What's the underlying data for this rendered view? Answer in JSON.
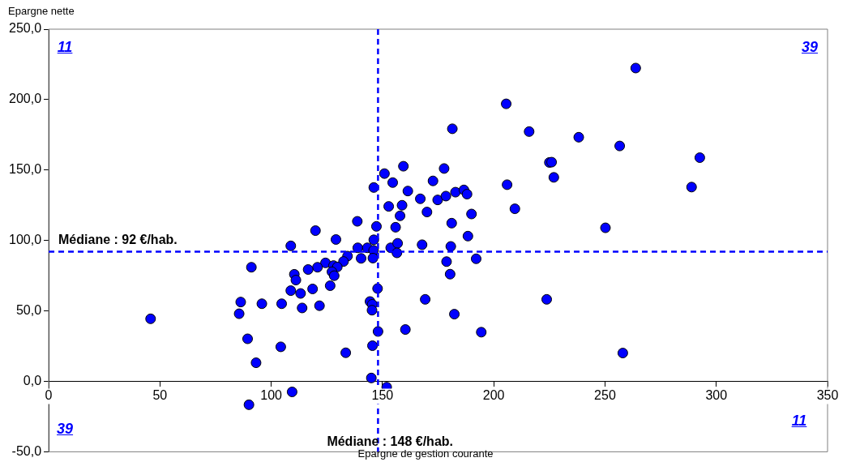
{
  "chart_data": {
    "type": "scatter",
    "xlabel": "Epargne de gestion courante",
    "ylabel": "Epargne nette",
    "series": [
      {
        "color": "#0000ff",
        "x": [
          45.8,
          150.9,
          146.1,
          152.8,
          138.7,
          147.3,
          119.9,
          129.1,
          146.1,
          108.8,
          138.9,
          143.2,
          146,
          153.7,
          134.3,
          140.4,
          145.7,
          132.5,
          124.4,
          128,
          129.7,
          120.8,
          116.6,
          91.1,
          127.3,
          128.3,
          110.4,
          111.1,
          126.5,
          108.8,
          113.2,
          118.6,
          147.8,
          86.3,
          95.8,
          104.7,
          85.6,
          113.9,
          121.7,
          144.4,
          145.4,
          145.3,
          148,
          89.4,
          104.3,
          145.5,
          133.5,
          93.2,
          145,
          151.9,
          109.4,
          90,
          205.6,
          181.4,
          215.9,
          238.2,
          159.4,
          177.7,
          225,
          226,
          227,
          154.6,
          172.7,
          161.4,
          167,
          174.8,
          178.5,
          182.8,
          186.6,
          188,
          206,
          209.5,
          158.8,
          170,
          157.9,
          190,
          155.9,
          181.1,
          188.4,
          167.8,
          180.7,
          156.8,
          156.5,
          192.1,
          178.8,
          180.4,
          169.2,
          223.8,
          182.3,
          160.3,
          194.4,
          263.8,
          256.6,
          292.6,
          288.9,
          250.2,
          258
        ],
        "values": [
          44.4,
          147.5,
          137.6,
          124.2,
          113.6,
          110,
          107,
          100.7,
          100.5,
          96.2,
          94.8,
          94.8,
          93,
          94.8,
          88.9,
          87.3,
          87.5,
          85.1,
          84.1,
          82.2,
          81.2,
          81,
          79.4,
          81,
          77.8,
          75,
          76,
          71.9,
          67.9,
          64.4,
          62.4,
          65.6,
          65.9,
          56.3,
          55.1,
          55.1,
          48,
          52.1,
          53.7,
          56.7,
          54.7,
          50.5,
          35.4,
          30.2,
          24.5,
          25.3,
          20.3,
          13.2,
          2.4,
          -4.1,
          -7.5,
          -16.6,
          197,
          179.3,
          177.3,
          173.3,
          152.7,
          151.1,
          155.4,
          155.6,
          144.8,
          141.1,
          142.3,
          135.1,
          129.6,
          128.8,
          131.5,
          134.3,
          135.9,
          132.9,
          139.6,
          122.5,
          125,
          120.2,
          117.5,
          118.8,
          109.4,
          112.3,
          103.1,
          97,
          95.8,
          98,
          91.2,
          87,
          85,
          76.1,
          58.2,
          58.2,
          47.7,
          36.8,
          34.9,
          222.4,
          167.1,
          158.8,
          137.9,
          109,
          20.1
        ]
      }
    ],
    "xlim": [
      0,
      350
    ],
    "xticks": [
      0,
      50,
      100,
      150,
      200,
      250,
      300,
      350
    ],
    "ylim": [
      -50,
      250
    ],
    "yticks": [
      {
        "value": -50,
        "label": "-50,0"
      },
      {
        "value": 0,
        "label": "0,0"
      },
      {
        "value": 50,
        "label": "50,0"
      },
      {
        "value": 100,
        "label": "100,0"
      },
      {
        "value": 150,
        "label": "150,0"
      },
      {
        "value": 200,
        "label": "200,0"
      },
      {
        "value": 250,
        "label": "250,0"
      }
    ],
    "grid": false,
    "legend": false,
    "marker": "circle",
    "ref_lines": [
      {
        "axis": "y",
        "value": 92,
        "label": "Médiane : 92 €/hab.",
        "color": "#0000ff",
        "line_style": "dashed"
      },
      {
        "axis": "x",
        "value": 148,
        "label": "Médiane : 148 €/hab.",
        "color": "#0000ff",
        "line_style": "dashed"
      }
    ],
    "annotations": [
      "11",
      "39",
      "39",
      "11"
    ]
  }
}
